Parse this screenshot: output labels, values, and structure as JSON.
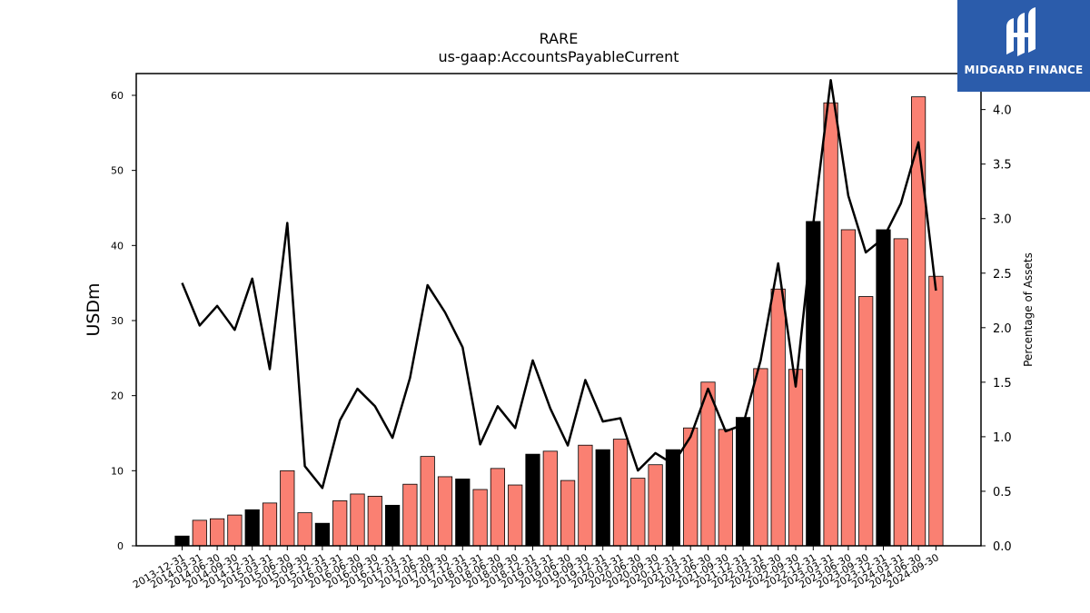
{
  "brand": {
    "name": "MIDGARD FINANCE",
    "color": "#2b5cab"
  },
  "chart_data": {
    "type": "bar",
    "title": "RARE",
    "subtitle": "us-gaap:AccountsPayableCurrent",
    "ylabel": "USDm",
    "y2label": "Percentage of Assets",
    "ylim": [
      0,
      62.9
    ],
    "y2lim": [
      0,
      4.33
    ],
    "yticks": [
      0,
      10,
      20,
      30,
      40,
      50,
      60
    ],
    "y2ticks": [
      "0.0",
      "0.5",
      "1.0",
      "1.5",
      "2.0",
      "2.5",
      "3.0",
      "3.5",
      "4.0"
    ],
    "colors": {
      "quarter": "#fa8072",
      "year_end": "#000000",
      "line": "#000000"
    },
    "categories": [
      "2013-12-31",
      "2014-03-31",
      "2014-06-30",
      "2014-09-30",
      "2014-12-31",
      "2015-03-31",
      "2015-06-30",
      "2015-09-30",
      "2015-12-31",
      "2016-03-31",
      "2016-06-30",
      "2016-09-30",
      "2016-12-31",
      "2017-03-31",
      "2017-06-30",
      "2017-09-30",
      "2017-12-31",
      "2018-03-31",
      "2018-06-30",
      "2018-09-30",
      "2018-12-31",
      "2019-03-31",
      "2019-06-30",
      "2019-09-30",
      "2019-12-31",
      "2020-03-31",
      "2020-06-30",
      "2020-09-30",
      "2020-12-31",
      "2021-03-31",
      "2021-06-30",
      "2021-09-30",
      "2021-12-31",
      "2022-03-31",
      "2022-06-30",
      "2022-09-30",
      "2022-12-31",
      "2023-03-31",
      "2023-06-30",
      "2023-09-30",
      "2023-12-31",
      "2024-03-31",
      "2024-06-30",
      "2024-09-30"
    ],
    "series": [
      {
        "values": [
          1.3,
          3.4,
          3.6,
          4.1,
          4.8,
          5.7,
          10.0,
          4.4,
          3.0,
          6.0,
          6.9,
          6.6,
          5.4,
          8.2,
          11.9,
          9.2,
          8.9,
          7.5,
          10.3,
          8.1,
          12.2,
          12.6,
          8.7,
          13.4,
          12.8,
          14.2,
          9.0,
          10.8,
          12.8,
          15.7,
          21.8,
          15.5,
          17.1,
          23.6,
          34.2,
          23.5,
          43.2,
          59.0,
          42.1,
          33.2,
          42.1,
          40.9,
          59.8,
          35.9
        ]
      },
      {
        "axis": "right",
        "type": "line",
        "values": [
          2.41,
          2.02,
          2.2,
          1.98,
          2.45,
          1.62,
          2.96,
          0.73,
          0.53,
          1.15,
          1.44,
          1.28,
          0.99,
          1.54,
          2.39,
          2.14,
          1.82,
          0.93,
          1.28,
          1.08,
          1.7,
          1.26,
          0.92,
          1.52,
          1.14,
          1.17,
          0.69,
          0.85,
          0.75,
          1.0,
          1.44,
          1.05,
          1.11,
          1.7,
          2.59,
          1.46,
          2.95,
          4.27,
          3.21,
          2.69,
          2.82,
          3.14,
          3.7,
          2.34
        ]
      }
    ],
    "year_end_flags": [
      1,
      0,
      0,
      0,
      1,
      0,
      0,
      0,
      1,
      0,
      0,
      0,
      1,
      0,
      0,
      0,
      1,
      0,
      0,
      0,
      1,
      0,
      0,
      0,
      1,
      0,
      0,
      0,
      1,
      0,
      0,
      0,
      1,
      0,
      0,
      0,
      1,
      0,
      0,
      0,
      1,
      0,
      0,
      0
    ],
    "grid": false,
    "legend": "none"
  }
}
